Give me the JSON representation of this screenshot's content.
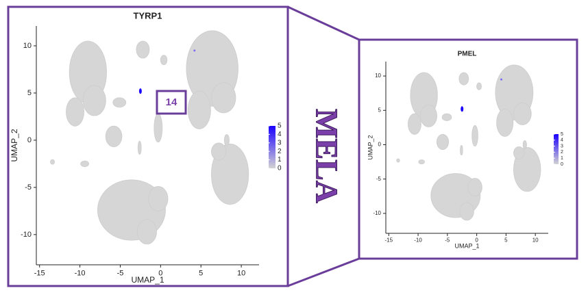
{
  "chart_data": [
    {
      "type": "scatter",
      "title": "TYRP1",
      "x_label": "UMAP_1",
      "y_label": "UMAP_2",
      "xlim": [
        -15.4,
        12.2
      ],
      "ylim": [
        -13.2,
        12.1
      ],
      "xticks": [
        -15,
        -10,
        -5,
        0,
        5,
        10
      ],
      "yticks": [
        -10,
        -5,
        0,
        5,
        10
      ],
      "colorbar": {
        "colors": [
          "#d3d3d3",
          "#1a00ff"
        ],
        "ticks": [
          0,
          1,
          2,
          3,
          4,
          5
        ]
      },
      "annotation": "14"
    },
    {
      "type": "scatter",
      "title": "PMEL",
      "x_label": "UMAP_1",
      "y_label": "UMAP_2",
      "xlim": [
        -15.5,
        12.2
      ],
      "ylim": [
        -12.9,
        12.1
      ],
      "xticks": [
        -15,
        -10,
        -5,
        0,
        5,
        10
      ],
      "yticks": [
        -10,
        -5,
        0,
        5,
        10
      ],
      "colorbar": {
        "colors": [
          "#d3d3d3",
          "#1a00ff"
        ],
        "ticks": [
          0,
          1,
          2,
          3,
          4,
          5
        ]
      }
    }
  ],
  "label": "MELA"
}
